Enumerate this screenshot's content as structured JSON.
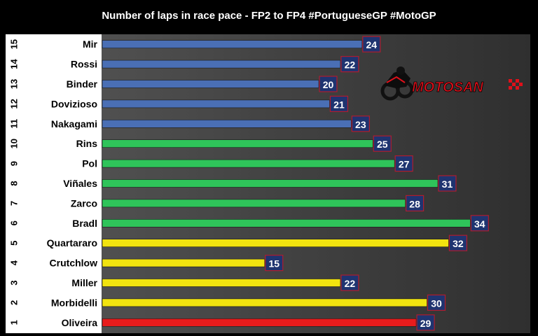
{
  "chart_data": {
    "type": "bar",
    "orientation": "horizontal",
    "title": "Number of laps in race pace - FP2 to FP4 #PortugueseGP #MotoGP",
    "xlabel": "",
    "ylabel": "",
    "xlim": [
      0,
      40
    ],
    "grid": false,
    "legend": "none",
    "categories": [
      "Mir",
      "Rossi",
      "Binder",
      "Dovizioso",
      "Nakagami",
      "Rins",
      "Pol",
      "Viñales",
      "Zarco",
      "Bradl",
      "Quartararo",
      "Crutchlow",
      "Miller",
      "Morbidelli",
      "Oliveira"
    ],
    "ranks": [
      "15",
      "14",
      "13",
      "12",
      "11",
      "10",
      "9",
      "8",
      "7",
      "6",
      "5",
      "4",
      "3",
      "2",
      "1"
    ],
    "values": [
      24,
      22,
      20,
      21,
      23,
      25,
      27,
      31,
      28,
      34,
      32,
      15,
      22,
      30,
      29
    ],
    "bar_colors": [
      "#4a6fb5",
      "#4a6fb5",
      "#4a6fb5",
      "#4a6fb5",
      "#4a6fb5",
      "#2fc45a",
      "#2fc45a",
      "#2fc45a",
      "#2fc45a",
      "#2fc45a",
      "#f2e40f",
      "#f2e40f",
      "#f2e40f",
      "#f2e40f",
      "#e81c1c"
    ]
  },
  "logo": {
    "text": "MOTOSAN"
  },
  "colors": {
    "background": "#000000",
    "plot_area": "#3c3c3c",
    "label_panel": "#ffffff",
    "value_box": "#1f3470",
    "value_box_border": "#b01c2e",
    "logo_red": "#e0101a"
  }
}
